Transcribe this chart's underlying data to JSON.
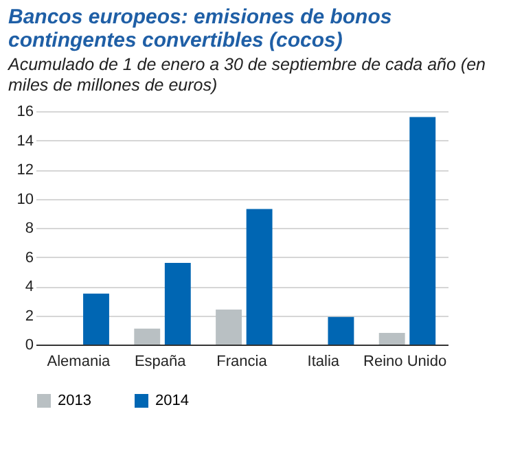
{
  "chart_data": {
    "type": "bar",
    "title": "Bancos europeos: emisiones de bonos contingentes convertibles (cocos)",
    "subtitle": "Acumulado de 1 de enero a 30 de septiembre de cada año (en miles de millones de euros)",
    "categories": [
      "Alemania",
      "España",
      "Francia",
      "Italia",
      "Reino Unido"
    ],
    "series": [
      {
        "name": "2013",
        "color": "#b9c0c3",
        "values": [
          0,
          1.1,
          2.4,
          0,
          0.8
        ]
      },
      {
        "name": "2014",
        "color": "#0066b3",
        "values": [
          3.5,
          5.6,
          9.3,
          1.9,
          15.6
        ]
      }
    ],
    "ylim": [
      0,
      16
    ],
    "yticks": [
      0,
      2,
      4,
      6,
      8,
      10,
      12,
      14,
      16
    ],
    "grid": "y",
    "legend": "bottom"
  }
}
